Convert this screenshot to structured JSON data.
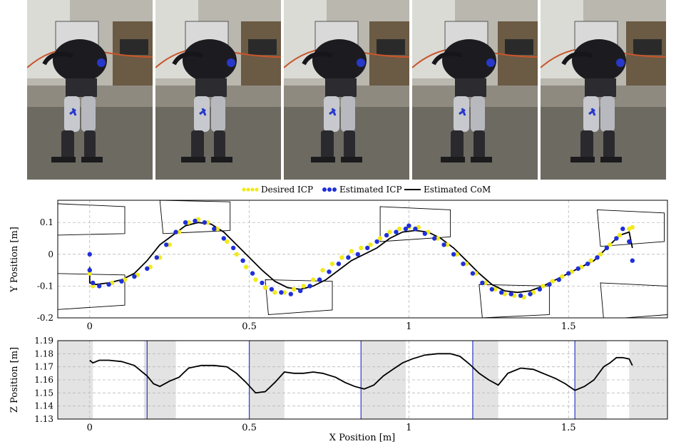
{
  "photos": {
    "frames": [
      {
        "caption": ""
      },
      {
        "caption": ""
      },
      {
        "caption": ""
      },
      {
        "caption": ""
      },
      {
        "caption": ""
      }
    ]
  },
  "legend": {
    "desired_icp": "Desired ICP",
    "estimated_icp": "Estimated ICP",
    "estimated_com": "Estimated CoM"
  },
  "colors": {
    "desired_icp": "#f2ea1c",
    "estimated_icp": "#1f30d8",
    "estimated_com": "#000000",
    "stance_shade": "#e3e3e3",
    "step_line": "#3b46c8",
    "grid": "#b8b8b8"
  },
  "chart_data": [
    {
      "type": "scatter",
      "ylabel": "Y Position [m]",
      "xlim": [
        -0.1,
        1.81
      ],
      "ylim": [
        -0.2,
        0.17
      ],
      "x_ticks": [
        0,
        0.5,
        1,
        1.5
      ],
      "x_tick_labels": [
        "0",
        "0.5",
        "1",
        "1.5"
      ],
      "y_ticks": [
        0.1,
        0,
        -0.1,
        -0.2
      ],
      "y_tick_labels": [
        "0.1",
        "0",
        "-0.1",
        "-0.2"
      ],
      "grid": true,
      "legend_position": "top",
      "footprints": [
        [
          [
            -0.12,
            0.16
          ],
          [
            0.11,
            0.15
          ],
          [
            0.11,
            0.065
          ],
          [
            -0.12,
            0.06
          ]
        ],
        [
          [
            -0.12,
            -0.06
          ],
          [
            0.11,
            -0.065
          ],
          [
            0.11,
            -0.16
          ],
          [
            -0.12,
            -0.175
          ]
        ],
        [
          [
            0.22,
            0.17
          ],
          [
            0.44,
            0.165
          ],
          [
            0.44,
            0.075
          ],
          [
            0.23,
            0.065
          ]
        ],
        [
          [
            0.55,
            -0.08
          ],
          [
            0.76,
            -0.085
          ],
          [
            0.76,
            -0.175
          ],
          [
            0.56,
            -0.19
          ]
        ],
        [
          [
            0.91,
            0.15
          ],
          [
            1.13,
            0.14
          ],
          [
            1.13,
            0.055
          ],
          [
            0.91,
            0.04
          ]
        ],
        [
          [
            1.22,
            -0.095
          ],
          [
            1.44,
            -0.1
          ],
          [
            1.44,
            -0.19
          ],
          [
            1.23,
            -0.2
          ]
        ],
        [
          [
            1.59,
            0.14
          ],
          [
            1.8,
            0.13
          ],
          [
            1.8,
            0.04
          ],
          [
            1.6,
            0.025
          ]
        ],
        [
          [
            1.6,
            -0.09
          ],
          [
            1.81,
            -0.1
          ],
          [
            1.81,
            -0.19
          ],
          [
            1.61,
            -0.205
          ]
        ]
      ],
      "series": [
        {
          "name": "Desired ICP",
          "x": [
            0.0,
            0.01,
            0.03,
            0.07,
            0.11,
            0.15,
            0.19,
            0.22,
            0.25,
            0.28,
            0.31,
            0.34,
            0.37,
            0.4,
            0.43,
            0.46,
            0.49,
            0.52,
            0.55,
            0.58,
            0.61,
            0.64,
            0.67,
            0.7,
            0.73,
            0.76,
            0.79,
            0.82,
            0.85,
            0.88,
            0.91,
            0.94,
            0.97,
            1.0,
            1.03,
            1.06,
            1.09,
            1.12,
            1.15,
            1.18,
            1.21,
            1.24,
            1.27,
            1.3,
            1.33,
            1.36,
            1.39,
            1.42,
            1.45,
            1.48,
            1.51,
            1.54,
            1.57,
            1.6,
            1.63,
            1.66,
            1.69,
            1.7
          ],
          "y": [
            -0.06,
            -0.1,
            -0.1,
            -0.09,
            -0.08,
            -0.065,
            -0.04,
            -0.01,
            0.03,
            0.07,
            0.1,
            0.11,
            0.1,
            0.08,
            0.04,
            0.0,
            -0.04,
            -0.08,
            -0.105,
            -0.12,
            -0.12,
            -0.11,
            -0.1,
            -0.08,
            -0.05,
            -0.03,
            -0.01,
            0.01,
            0.02,
            0.03,
            0.05,
            0.07,
            0.08,
            0.085,
            0.085,
            0.07,
            0.05,
            0.03,
            0.0,
            -0.03,
            -0.06,
            -0.09,
            -0.11,
            -0.125,
            -0.13,
            -0.135,
            -0.12,
            -0.1,
            -0.085,
            -0.07,
            -0.055,
            -0.04,
            -0.02,
            0.0,
            0.03,
            0.06,
            0.08,
            0.085
          ]
        },
        {
          "name": "Estimated ICP",
          "x": [
            0.0,
            0.0,
            0.01,
            0.03,
            0.06,
            0.1,
            0.14,
            0.18,
            0.21,
            0.24,
            0.27,
            0.3,
            0.33,
            0.36,
            0.39,
            0.42,
            0.45,
            0.48,
            0.51,
            0.54,
            0.57,
            0.6,
            0.63,
            0.66,
            0.69,
            0.72,
            0.75,
            0.78,
            0.81,
            0.84,
            0.87,
            0.9,
            0.93,
            0.96,
            0.99,
            1.0,
            1.02,
            1.05,
            1.08,
            1.11,
            1.14,
            1.17,
            1.2,
            1.23,
            1.26,
            1.29,
            1.32,
            1.35,
            1.38,
            1.41,
            1.44,
            1.47,
            1.5,
            1.53,
            1.56,
            1.59,
            1.62,
            1.65,
            1.67,
            1.69,
            1.7
          ],
          "y": [
            0.0,
            -0.05,
            -0.09,
            -0.1,
            -0.095,
            -0.085,
            -0.07,
            -0.045,
            -0.01,
            0.03,
            0.07,
            0.1,
            0.105,
            0.1,
            0.08,
            0.05,
            0.02,
            -0.02,
            -0.06,
            -0.09,
            -0.11,
            -0.12,
            -0.125,
            -0.115,
            -0.1,
            -0.08,
            -0.055,
            -0.03,
            -0.01,
            0.0,
            0.02,
            0.04,
            0.06,
            0.07,
            0.08,
            0.09,
            0.08,
            0.065,
            0.05,
            0.03,
            0.0,
            -0.03,
            -0.06,
            -0.09,
            -0.11,
            -0.12,
            -0.125,
            -0.13,
            -0.125,
            -0.11,
            -0.095,
            -0.08,
            -0.06,
            -0.045,
            -0.03,
            -0.01,
            0.02,
            0.05,
            0.08,
            0.04,
            -0.02
          ]
        },
        {
          "name": "Estimated CoM",
          "x": [
            0.0,
            0.0,
            0.02,
            0.06,
            0.1,
            0.14,
            0.18,
            0.22,
            0.26,
            0.3,
            0.34,
            0.38,
            0.42,
            0.46,
            0.5,
            0.54,
            0.58,
            0.62,
            0.66,
            0.7,
            0.74,
            0.78,
            0.82,
            0.86,
            0.9,
            0.94,
            0.98,
            1.02,
            1.06,
            1.1,
            1.14,
            1.18,
            1.22,
            1.26,
            1.3,
            1.34,
            1.38,
            1.42,
            1.46,
            1.5,
            1.54,
            1.58,
            1.62,
            1.66,
            1.69,
            1.7
          ],
          "y": [
            -0.04,
            -0.09,
            -0.095,
            -0.09,
            -0.08,
            -0.06,
            -0.02,
            0.03,
            0.06,
            0.09,
            0.1,
            0.095,
            0.07,
            0.03,
            -0.01,
            -0.05,
            -0.085,
            -0.105,
            -0.11,
            -0.1,
            -0.08,
            -0.05,
            -0.02,
            0.0,
            0.02,
            0.05,
            0.07,
            0.075,
            0.07,
            0.05,
            0.02,
            -0.02,
            -0.06,
            -0.095,
            -0.115,
            -0.12,
            -0.115,
            -0.1,
            -0.08,
            -0.06,
            -0.04,
            -0.02,
            0.02,
            0.06,
            0.07,
            0.02
          ]
        }
      ]
    },
    {
      "type": "line",
      "xlabel": "X Position [m]",
      "ylabel": "Z Position [m]",
      "xlim": [
        -0.1,
        1.81
      ],
      "ylim": [
        1.13,
        1.19
      ],
      "x_ticks": [
        0,
        0.5,
        1,
        1.5
      ],
      "x_tick_labels": [
        "0",
        "0.5",
        "1",
        "1.5"
      ],
      "y_ticks": [
        1.19,
        1.18,
        1.17,
        1.16,
        1.15,
        1.14,
        1.13
      ],
      "y_tick_labels": [
        "1.19",
        "1.18",
        "1.17",
        "1.16",
        "1.15",
        "1.14",
        "1.13"
      ],
      "grid": true,
      "shaded_regions": [
        [
          -0.1,
          0.01
        ],
        [
          0.17,
          0.27
        ],
        [
          0.5,
          0.61
        ],
        [
          0.85,
          0.99
        ],
        [
          1.2,
          1.28
        ],
        [
          1.52,
          1.62
        ],
        [
          1.69,
          1.81
        ]
      ],
      "step_markers": [
        0.18,
        0.5,
        0.85,
        1.2,
        1.52
      ],
      "series": [
        {
          "name": "Estimated CoM",
          "x": [
            0.0,
            0.01,
            0.03,
            0.06,
            0.1,
            0.14,
            0.18,
            0.2,
            0.22,
            0.25,
            0.28,
            0.31,
            0.35,
            0.39,
            0.43,
            0.46,
            0.49,
            0.52,
            0.55,
            0.58,
            0.61,
            0.64,
            0.67,
            0.7,
            0.73,
            0.77,
            0.8,
            0.83,
            0.86,
            0.89,
            0.92,
            0.95,
            0.98,
            1.01,
            1.05,
            1.09,
            1.13,
            1.16,
            1.19,
            1.22,
            1.25,
            1.28,
            1.31,
            1.35,
            1.39,
            1.43,
            1.46,
            1.49,
            1.52,
            1.55,
            1.58,
            1.61,
            1.63,
            1.65,
            1.67,
            1.69,
            1.7
          ],
          "y": [
            1.175,
            1.173,
            1.175,
            1.175,
            1.174,
            1.171,
            1.163,
            1.157,
            1.155,
            1.159,
            1.162,
            1.169,
            1.171,
            1.171,
            1.17,
            1.165,
            1.158,
            1.15,
            1.151,
            1.158,
            1.166,
            1.165,
            1.165,
            1.166,
            1.165,
            1.162,
            1.158,
            1.155,
            1.153,
            1.156,
            1.163,
            1.168,
            1.173,
            1.176,
            1.179,
            1.18,
            1.18,
            1.178,
            1.172,
            1.165,
            1.16,
            1.156,
            1.165,
            1.169,
            1.168,
            1.164,
            1.161,
            1.157,
            1.152,
            1.155,
            1.16,
            1.17,
            1.173,
            1.177,
            1.177,
            1.176,
            1.171
          ]
        }
      ]
    }
  ]
}
